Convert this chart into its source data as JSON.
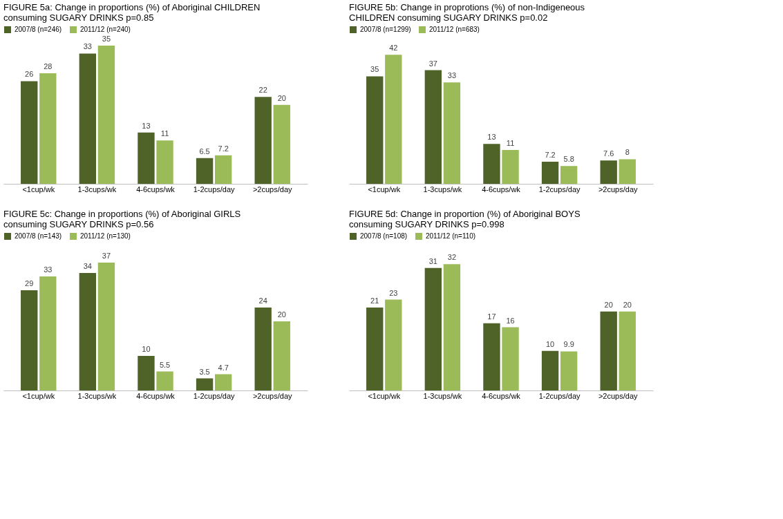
{
  "chart_data": [
    {
      "type": "bar",
      "title": "FIGURE 5a: Change in proportions (%) of Aboriginal CHILDREN\nconsuming SUGARY DRINKS  p=0.85",
      "categories": [
        "<1cup/wk",
        "1-3cups/wk",
        "4-6cups/wk",
        "1-2cups/day",
        ">2cups/day"
      ],
      "series": [
        {
          "name": "2007/8 (n=246)",
          "color": "#4f6228",
          "values": [
            26,
            33,
            13,
            6.5,
            22
          ]
        },
        {
          "name": "2011/12 (n=240)",
          "color": "#9bbb59",
          "values": [
            28,
            35,
            11,
            7.2,
            20
          ]
        }
      ],
      "data_labels": true,
      "legend": "top",
      "grid": false,
      "tick_labels": "x"
    },
    {
      "type": "bar",
      "title": "FIGURE 5b: Change in proprotions (%) of non-Indigeneous\nCHILDREN consuming  SUGARY DRINKS  p=0.02",
      "categories": [
        "<1cup/wk",
        "1-3cups/wk",
        "4-6cups/wk",
        "1-2cups/day",
        ">2cups/day"
      ],
      "series": [
        {
          "name": "2007/8 (n=1299)",
          "color": "#4f6228",
          "values": [
            35,
            37,
            13,
            7.2,
            7.6
          ]
        },
        {
          "name": "2011/12 (n=683)",
          "color": "#9bbb59",
          "values": [
            42,
            33,
            11,
            5.8,
            8
          ]
        }
      ],
      "data_labels": true,
      "legend": "top",
      "grid": false,
      "tick_labels": "x"
    },
    {
      "type": "bar",
      "title": "FIGURE 5c: Change in proportions (%) of Aboriginal GIRLS\nconsuming SUGARY DRINKS p=0.56",
      "categories": [
        "<1cup/wk",
        "1-3cups/wk",
        "4-6cups/wk",
        "1-2cups/day",
        ">2cups/day"
      ],
      "series": [
        {
          "name": "2007/8 (n=143)",
          "color": "#4f6228",
          "values": [
            29,
            34,
            10,
            3.5,
            24
          ]
        },
        {
          "name": "2011/12 (n=130)",
          "color": "#9bbb59",
          "values": [
            33,
            37,
            5.5,
            4.7,
            20
          ]
        }
      ],
      "data_labels": true,
      "legend": "top",
      "grid": false,
      "tick_labels": "x"
    },
    {
      "type": "bar",
      "title": "FIGURE 5d: Change in proportion (%) of Aboriginal BOYS\nconsuming  SUGARY DRINKS p=0.998",
      "categories": [
        "<1cup/wk",
        "1-3cups/wk",
        "4-6cups/wk",
        "1-2cups/day",
        ">2cups/day"
      ],
      "series": [
        {
          "name": "2007/8 (n=108)",
          "color": "#4f6228",
          "values": [
            21,
            31,
            17,
            10,
            20
          ]
        },
        {
          "name": "2011/12 (n=110)",
          "color": "#9bbb59",
          "values": [
            23,
            32,
            16,
            9.9,
            20
          ]
        }
      ],
      "data_labels": true,
      "legend": "top",
      "grid": false,
      "tick_labels": "x"
    }
  ]
}
